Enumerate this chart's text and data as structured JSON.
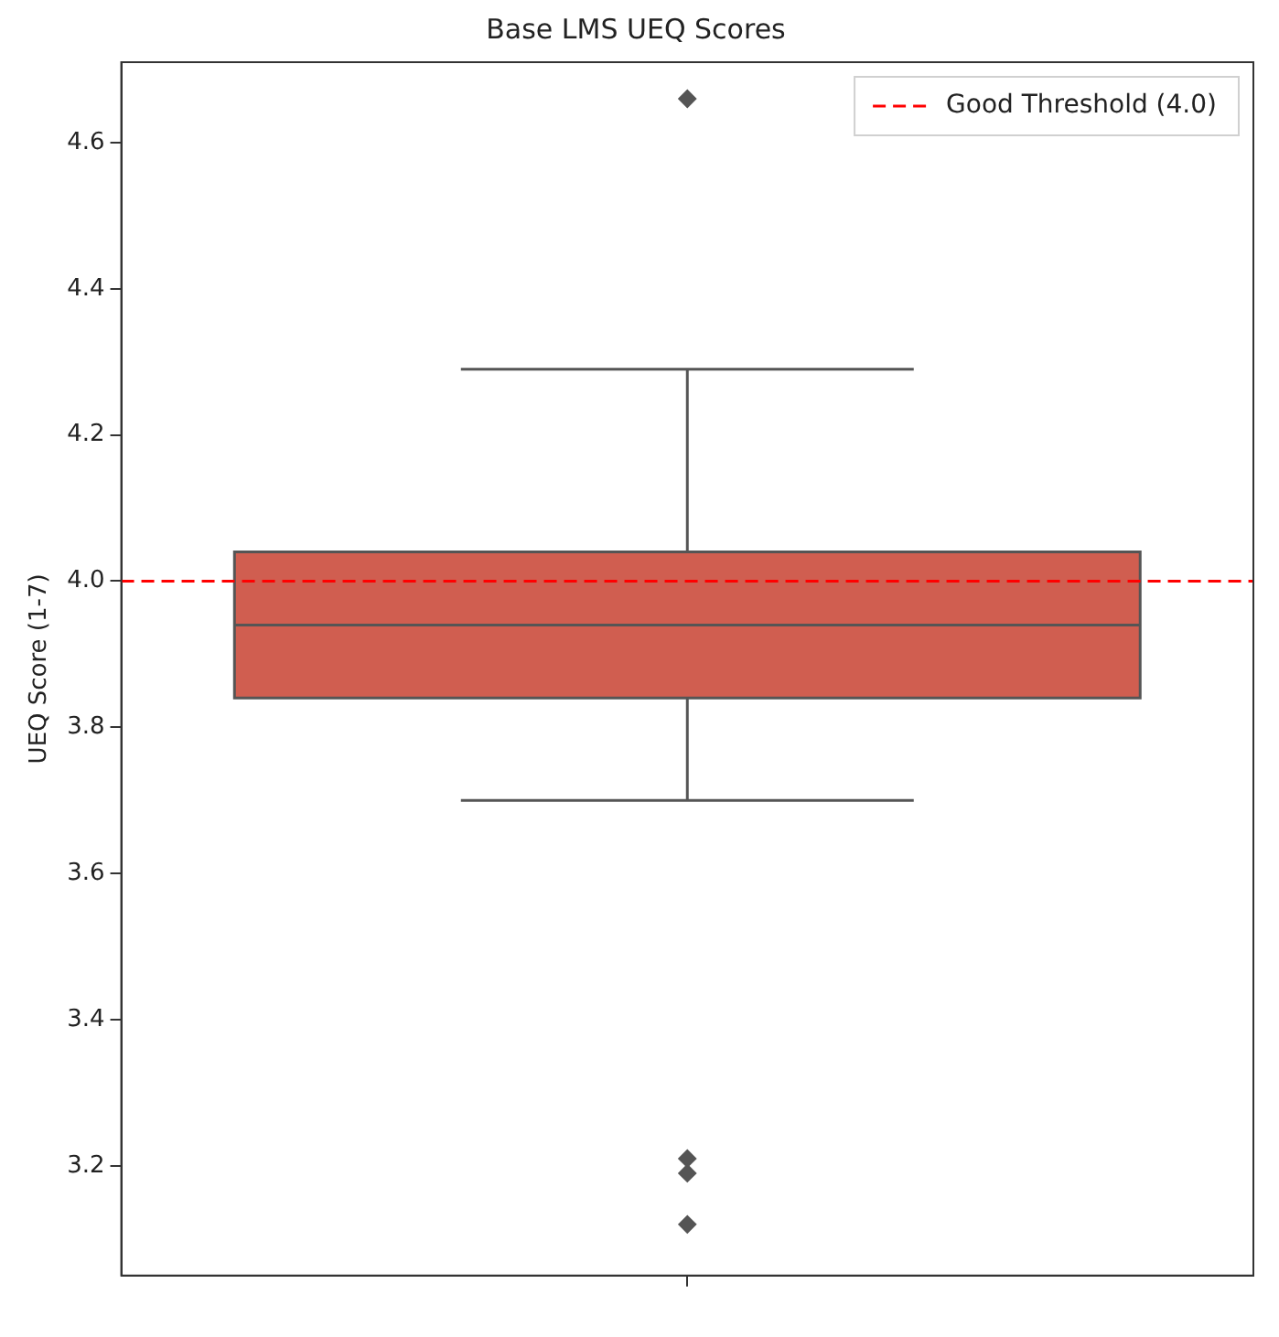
{
  "chart_data": {
    "type": "box",
    "title": "Base LMS UEQ Scores",
    "ylabel": "UEQ Score (1-7)",
    "categories": [
      null
    ],
    "boxes": [
      {
        "low": 3.7,
        "q1": 3.84,
        "median": 3.94,
        "q3": 4.04,
        "high": 4.29,
        "outliers": [
          4.66,
          3.21,
          3.19,
          3.12
        ]
      }
    ],
    "color": "#d05e50",
    "ylim": [
      3.05,
      4.71
    ],
    "yticks": [
      3.2,
      3.4,
      3.6,
      3.8,
      {
        "value": 4,
        "label": "4.0"
      },
      4.2,
      4.4,
      4.6
    ],
    "ref_lines": [
      {
        "axis": "y",
        "value": 4.0,
        "label": "Good Threshold (4.0)",
        "color": "#ff0000",
        "line_style": "dashed"
      }
    ],
    "legend": "top right",
    "grid": false,
    "marker": "diamond"
  }
}
